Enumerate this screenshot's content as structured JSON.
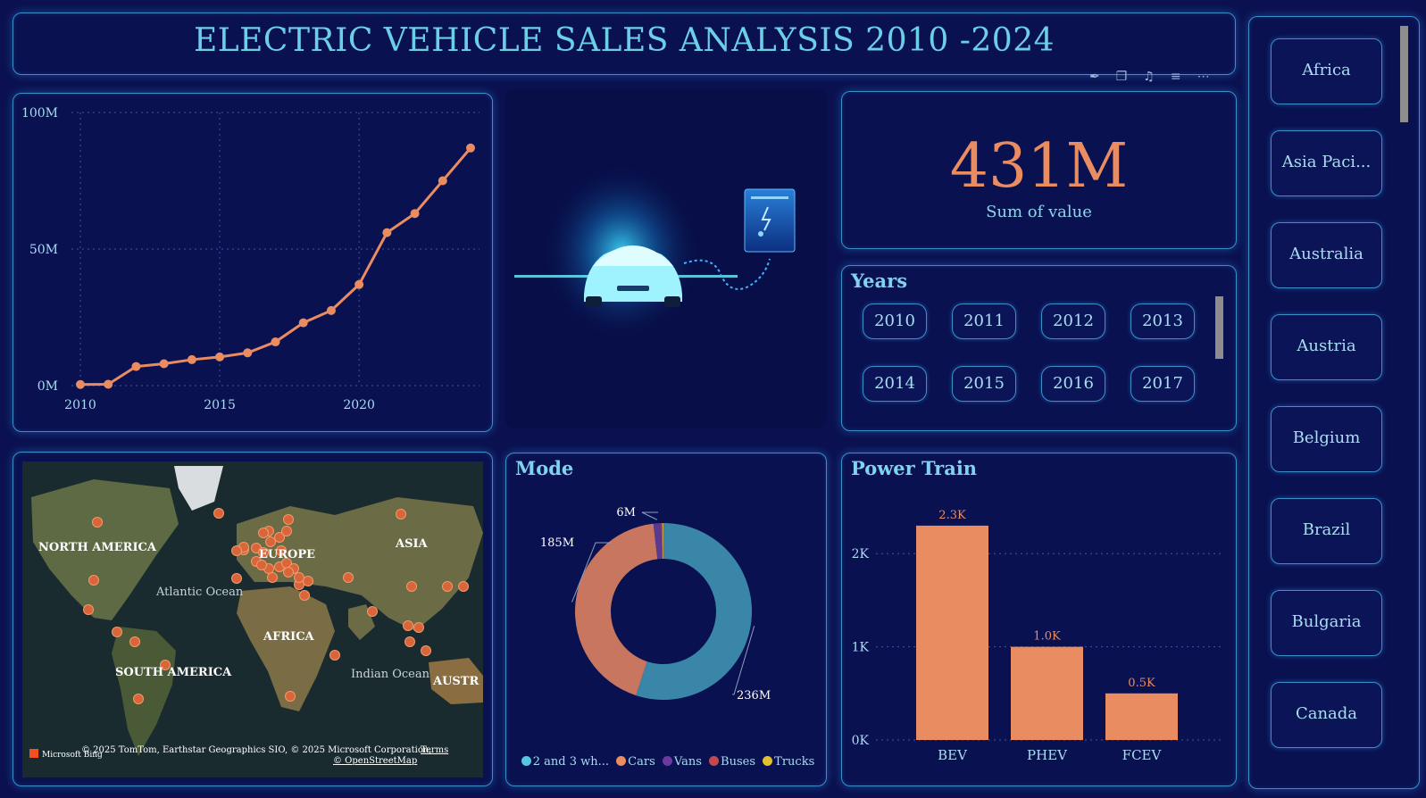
{
  "title": "ELECTRIC VEHICLE SALES ANALYSIS 2010 -2024",
  "colors": {
    "accent": "#e98c61",
    "panel_border": "#3a8fc9",
    "background": "#0b1150",
    "text": "#9fd6f0"
  },
  "header_icons": [
    "pin-icon",
    "copy-icon",
    "bell-icon",
    "filter-icon",
    "more-icon"
  ],
  "kpi": {
    "value": "431M",
    "label": "Sum of value"
  },
  "years": {
    "title": "Years",
    "items": [
      "2010",
      "2011",
      "2012",
      "2013",
      "2014",
      "2015",
      "2016",
      "2017"
    ]
  },
  "countries": {
    "items": [
      "Africa",
      "Asia Paci...",
      "Australia",
      "Austria",
      "Belgium",
      "Brazil",
      "Bulgaria",
      "Canada"
    ]
  },
  "map": {
    "labels": [
      "NORTH AMERICA",
      "EUROPE",
      "ASIA",
      "Atlantic Ocean",
      "AFRICA",
      "SOUTH AMERICA",
      "Indian Ocean",
      "AUSTR"
    ],
    "attribution": "© 2025 TomTom, Earthstar Geographics SIO, © 2025 Microsoft Corporation,",
    "terms": "Terms",
    "osm": "© OpenStreetMap",
    "brand": "Microsoft Bing"
  },
  "chart_data": [
    {
      "type": "line",
      "x": [
        2010,
        2011,
        2012,
        2013,
        2014,
        2015,
        2016,
        2017,
        2018,
        2019,
        2020,
        2021,
        2022,
        2023,
        2024
      ],
      "values": [
        0.4,
        0.5,
        7,
        8,
        9.5,
        10.5,
        12,
        16,
        23,
        27.5,
        37,
        56,
        63,
        75,
        87
      ],
      "ylim": [
        0,
        100
      ],
      "yticks": [
        "100M",
        "50M",
        "0M"
      ],
      "xticks": [
        "2010",
        "2015",
        "2020"
      ],
      "grid": true
    },
    {
      "type": "pie",
      "title": "Mode",
      "series": [
        {
          "name": "2 and 3 wh...",
          "value": 236,
          "label": "236M",
          "color": "#3a86a8"
        },
        {
          "name": "Cars",
          "value": 185,
          "label": "185M",
          "color": "#c8765f"
        },
        {
          "name": "Vans",
          "value": 6,
          "label": "6M",
          "color": "#5a3a8c"
        },
        {
          "name": "Buses",
          "value": 1.2,
          "color": "#c04a50"
        },
        {
          "name": "Trucks",
          "value": 0.6,
          "color": "#e0c030"
        }
      ]
    },
    {
      "type": "bar",
      "title": "Power Train",
      "categories": [
        "BEV",
        "PHEV",
        "FCEV"
      ],
      "values": [
        2.3,
        1.0,
        0.5
      ],
      "data_labels": [
        "2.3K",
        "1.0K",
        "0.5K"
      ],
      "yticks": [
        "2K",
        "1K",
        "0K"
      ],
      "ylim": [
        0,
        2.5
      ],
      "grid": true
    }
  ]
}
